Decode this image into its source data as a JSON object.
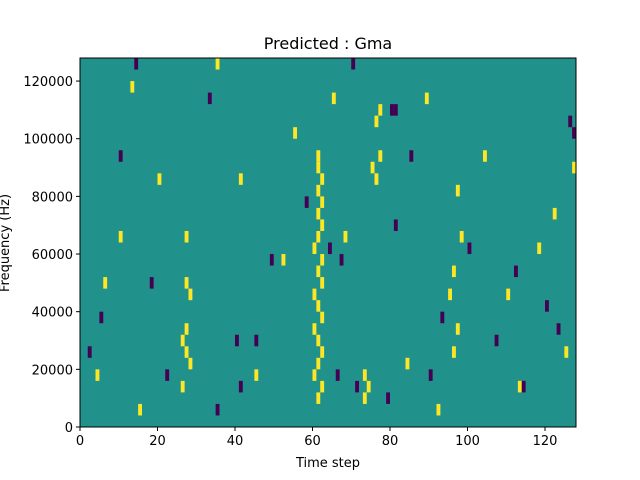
{
  "chart_data": {
    "type": "heatmap",
    "title": "Predicted : Gma",
    "xlabel": "Time step",
    "ylabel": "Frequency (Hz)",
    "xlim": [
      0,
      128
    ],
    "ylim": [
      0,
      128000
    ],
    "x_ticks": [
      0,
      20,
      40,
      60,
      80,
      100,
      120
    ],
    "y_ticks": [
      0,
      20000,
      40000,
      60000,
      80000,
      100000,
      120000
    ],
    "value_levels": [
      -1,
      0,
      1
    ],
    "colormap": {
      "-1": "#440154",
      "0": "#21918c",
      "1": "#fde725"
    },
    "background_value": 0,
    "grid": false,
    "legend": "none",
    "cell_width_steps": 1,
    "cell_height_hz": 4000,
    "cells": [
      {
        "t": 61,
        "f": 92000,
        "v": 1
      },
      {
        "t": 61,
        "f": 88000,
        "v": 1
      },
      {
        "t": 62,
        "f": 84000,
        "v": 1
      },
      {
        "t": 61,
        "f": 80000,
        "v": 1
      },
      {
        "t": 62,
        "f": 76000,
        "v": 1
      },
      {
        "t": 61,
        "f": 72000,
        "v": 1
      },
      {
        "t": 62,
        "f": 68000,
        "v": 1
      },
      {
        "t": 61,
        "f": 64000,
        "v": 1
      },
      {
        "t": 60,
        "f": 60000,
        "v": 1
      },
      {
        "t": 62,
        "f": 56000,
        "v": 1
      },
      {
        "t": 61,
        "f": 52000,
        "v": 1
      },
      {
        "t": 62,
        "f": 48000,
        "v": 1
      },
      {
        "t": 60,
        "f": 44000,
        "v": 1
      },
      {
        "t": 61,
        "f": 40000,
        "v": 1
      },
      {
        "t": 62,
        "f": 36000,
        "v": 1
      },
      {
        "t": 60,
        "f": 32000,
        "v": 1
      },
      {
        "t": 61,
        "f": 28000,
        "v": 1
      },
      {
        "t": 62,
        "f": 24000,
        "v": 1
      },
      {
        "t": 61,
        "f": 20000,
        "v": 1
      },
      {
        "t": 60,
        "f": 16000,
        "v": 1
      },
      {
        "t": 62,
        "f": 12000,
        "v": 1
      },
      {
        "t": 61,
        "f": 8000,
        "v": 1
      },
      {
        "t": 27,
        "f": 32000,
        "v": 1
      },
      {
        "t": 26,
        "f": 28000,
        "v": 1
      },
      {
        "t": 27,
        "f": 24000,
        "v": 1
      },
      {
        "t": 28,
        "f": 20000,
        "v": 1
      },
      {
        "t": 26,
        "f": 12000,
        "v": 1
      },
      {
        "t": 27,
        "f": 48000,
        "v": 1
      },
      {
        "t": 28,
        "f": 44000,
        "v": 1
      },
      {
        "t": 27,
        "f": 64000,
        "v": 1
      },
      {
        "t": 73,
        "f": 16000,
        "v": 1
      },
      {
        "t": 74,
        "f": 12000,
        "v": 1
      },
      {
        "t": 73,
        "f": 8000,
        "v": 1
      },
      {
        "t": 75,
        "f": 88000,
        "v": 1
      },
      {
        "t": 76,
        "f": 84000,
        "v": 1
      },
      {
        "t": 77,
        "f": 92000,
        "v": 1
      },
      {
        "t": 76,
        "f": 104000,
        "v": 1
      },
      {
        "t": 77,
        "f": 108000,
        "v": 1
      },
      {
        "t": 96,
        "f": 24000,
        "v": 1
      },
      {
        "t": 97,
        "f": 32000,
        "v": 1
      },
      {
        "t": 95,
        "f": 44000,
        "v": 1
      },
      {
        "t": 96,
        "f": 52000,
        "v": 1
      },
      {
        "t": 98,
        "f": 64000,
        "v": 1
      },
      {
        "t": 97,
        "f": 80000,
        "v": 1
      },
      {
        "t": 4,
        "f": 16000,
        "v": 1
      },
      {
        "t": 6,
        "f": 48000,
        "v": 1
      },
      {
        "t": 10,
        "f": 64000,
        "v": 1
      },
      {
        "t": 13,
        "f": 116000,
        "v": 1
      },
      {
        "t": 15,
        "f": 4000,
        "v": 1
      },
      {
        "t": 20,
        "f": 84000,
        "v": 1
      },
      {
        "t": 35,
        "f": 124000,
        "v": 1
      },
      {
        "t": 41,
        "f": 84000,
        "v": 1
      },
      {
        "t": 45,
        "f": 16000,
        "v": 1
      },
      {
        "t": 52,
        "f": 56000,
        "v": 1
      },
      {
        "t": 55,
        "f": 100000,
        "v": 1
      },
      {
        "t": 65,
        "f": 112000,
        "v": 1
      },
      {
        "t": 68,
        "f": 64000,
        "v": 1
      },
      {
        "t": 84,
        "f": 20000,
        "v": 1
      },
      {
        "t": 89,
        "f": 112000,
        "v": 1
      },
      {
        "t": 92,
        "f": 4000,
        "v": 1
      },
      {
        "t": 104,
        "f": 92000,
        "v": 1
      },
      {
        "t": 110,
        "f": 44000,
        "v": 1
      },
      {
        "t": 113,
        "f": 12000,
        "v": 1
      },
      {
        "t": 118,
        "f": 60000,
        "v": 1
      },
      {
        "t": 122,
        "f": 72000,
        "v": 1
      },
      {
        "t": 125,
        "f": 24000,
        "v": 1
      },
      {
        "t": 127,
        "f": 88000,
        "v": 1
      },
      {
        "t": 80,
        "f": 108000,
        "v": -1
      },
      {
        "t": 81,
        "f": 108000,
        "v": -1
      },
      {
        "t": 64,
        "f": 60000,
        "v": -1
      },
      {
        "t": 67,
        "f": 56000,
        "v": -1
      },
      {
        "t": 66,
        "f": 16000,
        "v": -1
      },
      {
        "t": 71,
        "f": 12000,
        "v": -1
      },
      {
        "t": 79,
        "f": 8000,
        "v": -1
      },
      {
        "t": 81,
        "f": 68000,
        "v": -1
      },
      {
        "t": 85,
        "f": 92000,
        "v": -1
      },
      {
        "t": 40,
        "f": 28000,
        "v": -1
      },
      {
        "t": 41,
        "f": 12000,
        "v": -1
      },
      {
        "t": 49,
        "f": 56000,
        "v": -1
      },
      {
        "t": 45,
        "f": 28000,
        "v": -1
      },
      {
        "t": 35,
        "f": 4000,
        "v": -1
      },
      {
        "t": 33,
        "f": 112000,
        "v": -1
      },
      {
        "t": 22,
        "f": 16000,
        "v": -1
      },
      {
        "t": 18,
        "f": 48000,
        "v": -1
      },
      {
        "t": 10,
        "f": 92000,
        "v": -1
      },
      {
        "t": 5,
        "f": 36000,
        "v": -1
      },
      {
        "t": 2,
        "f": 24000,
        "v": -1
      },
      {
        "t": 14,
        "f": 124000,
        "v": -1
      },
      {
        "t": 90,
        "f": 16000,
        "v": -1
      },
      {
        "t": 93,
        "f": 36000,
        "v": -1
      },
      {
        "t": 100,
        "f": 60000,
        "v": -1
      },
      {
        "t": 107,
        "f": 28000,
        "v": -1
      },
      {
        "t": 112,
        "f": 52000,
        "v": -1
      },
      {
        "t": 114,
        "f": 12000,
        "v": -1
      },
      {
        "t": 120,
        "f": 40000,
        "v": -1
      },
      {
        "t": 126,
        "f": 104000,
        "v": -1
      },
      {
        "t": 127,
        "f": 100000,
        "v": -1
      },
      {
        "t": 123,
        "f": 32000,
        "v": -1
      },
      {
        "t": 70,
        "f": 124000,
        "v": -1
      },
      {
        "t": 58,
        "f": 76000,
        "v": -1
      }
    ]
  }
}
